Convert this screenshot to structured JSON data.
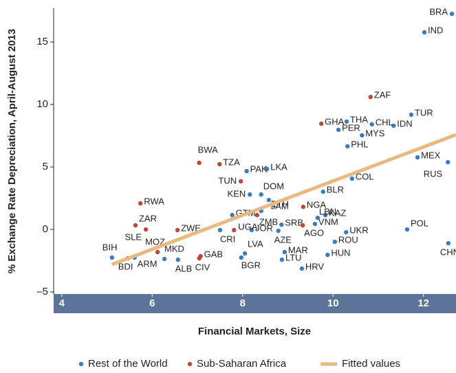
{
  "chart_data": {
    "type": "scatter",
    "y_label": "% Exchange Rate Depreciation, April-August 2013",
    "x_label": "Financial Markets, Size",
    "xlim": [
      3.82,
      12.72
    ],
    "ylim": [
      -5,
      17.7
    ],
    "xticks": [
      4,
      6,
      8,
      10,
      12
    ],
    "yticks": [
      {
        "value": -5,
        "label": "–5"
      },
      0,
      5,
      10,
      15
    ],
    "series": [
      {
        "name": "Rest of the World",
        "type": "scatter",
        "color": "#3a7cc4",
        "labels": [
          "BRA",
          "IND",
          "TUR",
          "IDN",
          "CHL",
          "THA",
          "MYS",
          "PER",
          "PHL",
          "MEX",
          "RUS",
          "COL",
          "BLR",
          "PAK",
          "LKA",
          "KEN",
          "DOM",
          "ETH",
          "GTM",
          "JAM",
          "KAZ",
          "LBN",
          "VNM",
          "SRB",
          "JOR",
          "CRI",
          "AZE",
          "UKR",
          "POL",
          "ROU",
          "CHN",
          "HUN",
          "MAR",
          "LTU",
          "LVA",
          "BGR",
          "HRV",
          "BIH",
          "ARM",
          "MKD",
          "ALB"
        ],
        "x": [
          12.63,
          12.02,
          11.73,
          11.34,
          10.86,
          10.3,
          10.64,
          10.12,
          10.32,
          11.87,
          12.54,
          10.42,
          9.78,
          8.09,
          8.54,
          8.16,
          8.41,
          8.58,
          7.77,
          8.41,
          9.83,
          9.66,
          9.6,
          8.86,
          8.2,
          7.5,
          8.79,
          10.29,
          11.64,
          10.04,
          12.55,
          9.88,
          8.93,
          8.87,
          8.05,
          7.97,
          9.31,
          5.11,
          5.61,
          6.27,
          6.57
        ],
        "values": [
          17.25,
          15.77,
          9.18,
          8.3,
          8.41,
          8.63,
          7.53,
          7.97,
          6.65,
          5.77,
          5.38,
          4.07,
          3.02,
          4.67,
          4.84,
          2.8,
          2.8,
          2.36,
          1.15,
          1.48,
          1.15,
          0.93,
          0.44,
          0.38,
          -0.05,
          -0.05,
          -0.11,
          -0.22,
          0.0,
          -0.99,
          -1.1,
          -2.03,
          -1.81,
          -2.42,
          -1.92,
          -2.25,
          -3.13,
          -2.25,
          -2.25,
          -2.36,
          -2.42
        ]
      },
      {
        "name": "Sub-Saharan Africa",
        "type": "scatter",
        "color": "#c0453a",
        "labels": [
          "ZAF",
          "GHA",
          "BWA",
          "TZA",
          "TUN",
          "RWA",
          "NGA",
          "ZAR",
          "SLE",
          "ZWE",
          "AGO",
          "ZMB",
          "UGA",
          "MOZ",
          "BDI",
          "GAB",
          "CIV"
        ],
        "x": [
          10.83,
          9.74,
          7.04,
          7.49,
          7.96,
          5.74,
          9.34,
          5.63,
          5.86,
          6.56,
          9.33,
          8.32,
          7.81,
          6.12,
          5.46,
          7.07,
          7.04
        ],
        "values": [
          10.6,
          8.46,
          5.33,
          5.22,
          3.85,
          2.09,
          1.81,
          0.33,
          0.0,
          -0.05,
          0.33,
          1.15,
          -0.05,
          -1.81,
          -2.31,
          -2.14,
          -2.31
        ]
      },
      {
        "name": "Fitted values",
        "type": "line",
        "color": "#e9b97f",
        "x": [
          5.11,
          12.72
        ],
        "values": [
          -2.8,
          7.58
        ]
      }
    ]
  }
}
